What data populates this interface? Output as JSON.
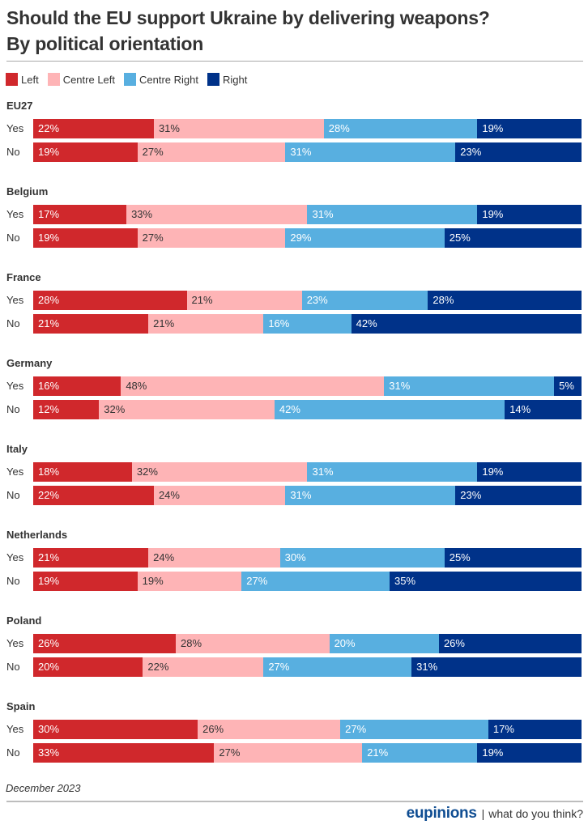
{
  "chart_data": {
    "type": "bar",
    "orientation": "horizontal",
    "stacked": true,
    "normalized": true,
    "title": "Should the EU support Ukraine by delivering weapons?",
    "subtitle": "By political orientation",
    "xlabel": "",
    "ylabel": "",
    "xlim": [
      0,
      100
    ],
    "grid": false,
    "legend_position": "top-left",
    "value_format": "{v}%",
    "series": [
      {
        "key": "left",
        "name": "Left",
        "color": "#d0282c",
        "text_color": "#ffffff"
      },
      {
        "key": "centre_left",
        "name": "Centre Left",
        "color": "#feb4b6",
        "text_color": "#333333"
      },
      {
        "key": "centre_right",
        "name": "Centre Right",
        "color": "#58afe0",
        "text_color": "#ffffff"
      },
      {
        "key": "right",
        "name": "Right",
        "color": "#003289",
        "text_color": "#ffffff"
      }
    ],
    "groups": [
      {
        "name": "EU27",
        "rows": [
          {
            "label": "Yes",
            "values": [
              22,
              31,
              28,
              19
            ]
          },
          {
            "label": "No",
            "values": [
              19,
              27,
              31,
              23
            ]
          }
        ]
      },
      {
        "name": "Belgium",
        "rows": [
          {
            "label": "Yes",
            "values": [
              17,
              33,
              31,
              19
            ]
          },
          {
            "label": "No",
            "values": [
              19,
              27,
              29,
              25
            ]
          }
        ]
      },
      {
        "name": "France",
        "rows": [
          {
            "label": "Yes",
            "values": [
              28,
              21,
              23,
              28
            ]
          },
          {
            "label": "No",
            "values": [
              21,
              21,
              16,
              42
            ]
          }
        ]
      },
      {
        "name": "Germany",
        "rows": [
          {
            "label": "Yes",
            "values": [
              16,
              48,
              31,
              5
            ]
          },
          {
            "label": "No",
            "values": [
              12,
              32,
              42,
              14
            ]
          }
        ]
      },
      {
        "name": "Italy",
        "rows": [
          {
            "label": "Yes",
            "values": [
              18,
              32,
              31,
              19
            ]
          },
          {
            "label": "No",
            "values": [
              22,
              24,
              31,
              23
            ]
          }
        ]
      },
      {
        "name": "Netherlands",
        "rows": [
          {
            "label": "Yes",
            "values": [
              21,
              24,
              30,
              25
            ]
          },
          {
            "label": "No",
            "values": [
              19,
              19,
              27,
              35
            ]
          }
        ]
      },
      {
        "name": "Poland",
        "rows": [
          {
            "label": "Yes",
            "values": [
              26,
              28,
              20,
              26
            ]
          },
          {
            "label": "No",
            "values": [
              20,
              22,
              27,
              31
            ]
          }
        ]
      },
      {
        "name": "Spain",
        "rows": [
          {
            "label": "Yes",
            "values": [
              30,
              26,
              27,
              17
            ]
          },
          {
            "label": "No",
            "values": [
              33,
              27,
              21,
              19
            ]
          }
        ]
      }
    ]
  },
  "header": {
    "title_line1": "Should the EU support Ukraine by delivering weapons?",
    "title_line2": "By political orientation"
  },
  "legend": [
    {
      "label": "Left",
      "color": "#d0282c"
    },
    {
      "label": "Centre Left",
      "color": "#feb4b6"
    },
    {
      "label": "Centre Right",
      "color": "#58afe0"
    },
    {
      "label": "Right",
      "color": "#003289"
    }
  ],
  "footer": {
    "date": "December 2023",
    "brand": "eupinions",
    "separator": "|",
    "tagline": "what do you think?"
  }
}
